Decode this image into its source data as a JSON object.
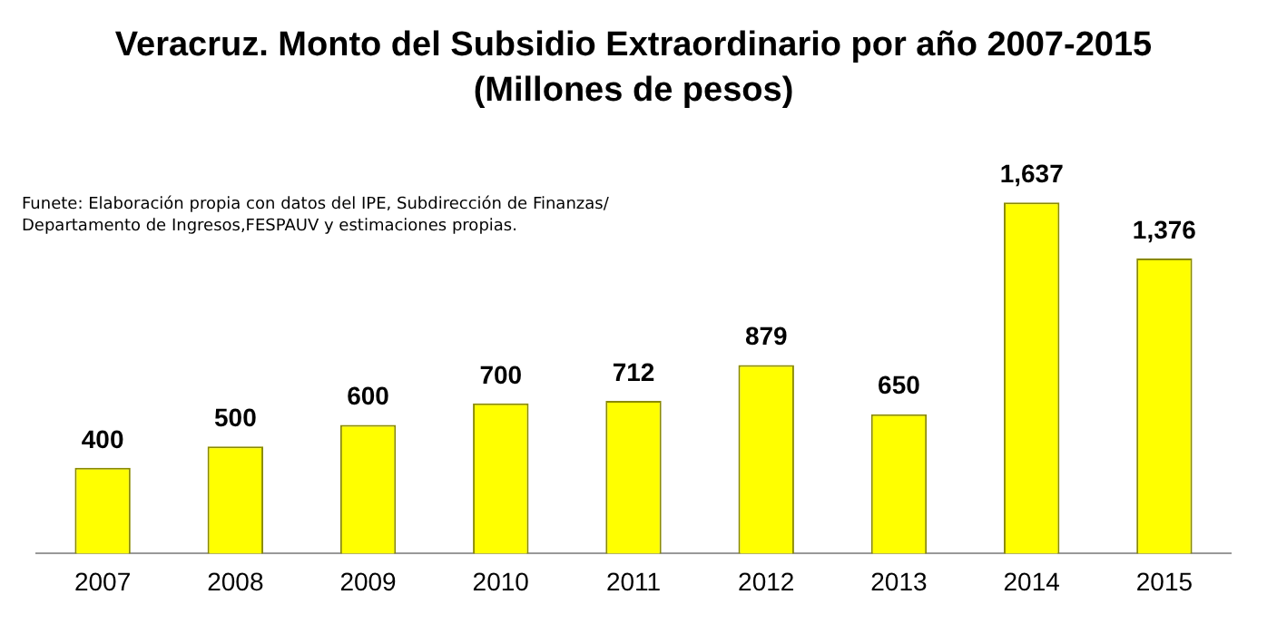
{
  "chart_data": {
    "type": "bar",
    "title": "Veracruz. Monto del Subsidio Extraordinario por año 2007-2015",
    "subtitle": "(Millones de pesos)",
    "categories": [
      "2007",
      "2008",
      "2009",
      "2010",
      "2011",
      "2012",
      "2013",
      "2014",
      "2015"
    ],
    "values": [
      400,
      500,
      600,
      700,
      712,
      879,
      650,
      1637,
      1376
    ],
    "value_labels": [
      "400",
      "500",
      "600",
      "700",
      "712",
      "879",
      "650",
      "1,637",
      "1,376"
    ],
    "color": "#ffff00",
    "annotations": [
      "Funete: Elaboración propia con datos del IPE, Subdirección de Finanzas/ Departamento de Ingresos,FESPAUV y estimaciones propias."
    ],
    "grid": false,
    "legend": false
  }
}
